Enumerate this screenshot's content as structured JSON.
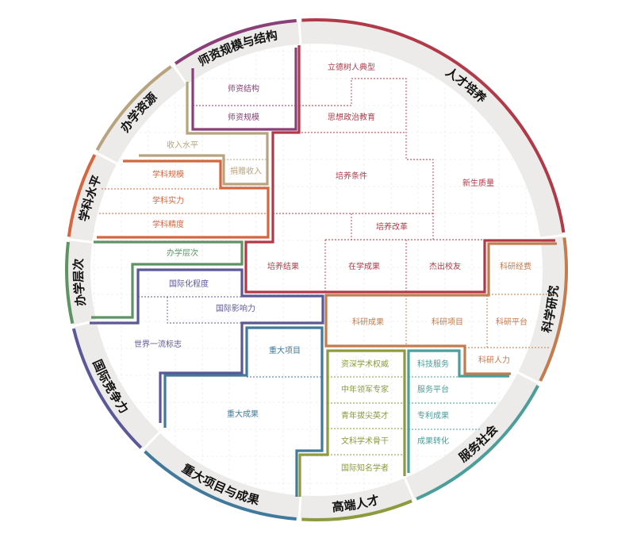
{
  "dimensions": [
    {
      "label": "人才培养",
      "color": "#b23a48",
      "items": [
        "立德树人典型",
        "思想政治教育",
        "培养条件",
        "新生质量",
        "培养改革",
        "培养结果",
        "在学成果",
        "杰出校友"
      ]
    },
    {
      "label": "科学研究",
      "color": "#c27c4e",
      "items": [
        "科研经费",
        "科研成果",
        "科研项目",
        "科研平台",
        "科研人力"
      ]
    },
    {
      "label": "服务社会",
      "color": "#4b9e9a",
      "items": [
        "科技服务",
        "服务平台",
        "专利成果",
        "成果转化"
      ]
    },
    {
      "label": "高端人才",
      "color": "#8d9a3e",
      "items": [
        "资深学术权威",
        "中年领军专家",
        "青年拔尖英才",
        "文科学术骨干",
        "国际知名学者"
      ]
    },
    {
      "label": "重大项目与成果",
      "color": "#41799a",
      "items": [
        "重大项目",
        "重大成果"
      ]
    },
    {
      "label": "国际竞争力",
      "color": "#5b5898",
      "items": [
        "国际化程度",
        "国际影响力",
        "世界一流标志"
      ]
    },
    {
      "label": "办学层次",
      "color": "#5e9463",
      "items": [
        "办学层次"
      ]
    },
    {
      "label": "学科水平",
      "color": "#d4673f",
      "items": [
        "学科规模",
        "学科实力",
        "学科精度"
      ]
    },
    {
      "label": "办学资源",
      "color": "#b7a47e",
      "items": [
        "收入水平",
        "捐赠收入"
      ]
    },
    {
      "label": "师资规模与结构",
      "color": "#8b3f78",
      "items": [
        "师资结构",
        "师资规模"
      ]
    }
  ]
}
